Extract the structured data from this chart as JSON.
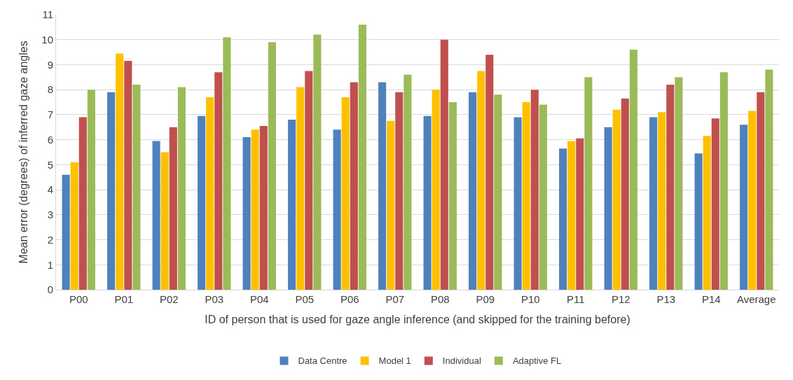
{
  "chart_data": {
    "type": "bar",
    "xlabel": "ID of person that is used for gaze angle inference (and skipped for the training before)",
    "ylabel": "Mean error (degrees) of inferred gaze angles",
    "categories": [
      "P00",
      "P01",
      "P02",
      "P03",
      "P04",
      "P05",
      "P06",
      "P07",
      "P08",
      "P09",
      "P10",
      "P11",
      "P12",
      "P13",
      "P14",
      "Average"
    ],
    "series": [
      {
        "name": "Data Centre",
        "color": "#4f81bd",
        "values": [
          4.6,
          7.9,
          5.95,
          6.95,
          6.1,
          6.8,
          6.4,
          8.3,
          6.95,
          7.9,
          6.9,
          5.65,
          6.5,
          6.9,
          5.45,
          6.6
        ]
      },
      {
        "name": "Model 1",
        "color": "#ffc000",
        "values": [
          5.1,
          9.45,
          5.5,
          7.7,
          6.4,
          8.1,
          7.7,
          6.75,
          8.0,
          8.75,
          7.5,
          5.95,
          7.2,
          7.1,
          6.15,
          7.15
        ]
      },
      {
        "name": "Individual",
        "color": "#c0504d",
        "values": [
          6.9,
          9.15,
          6.5,
          8.7,
          6.55,
          8.75,
          8.3,
          7.9,
          10.0,
          9.4,
          8.0,
          6.05,
          7.65,
          8.2,
          6.85,
          7.9
        ]
      },
      {
        "name": "Adaptive FL",
        "color": "#9bbb59",
        "values": [
          8.0,
          8.2,
          8.1,
          10.1,
          9.9,
          10.2,
          10.6,
          8.6,
          7.5,
          7.8,
          7.4,
          8.5,
          9.6,
          8.5,
          8.7,
          8.8
        ]
      }
    ],
    "ylim": [
      0,
      11
    ],
    "yticks": [
      0,
      1,
      2,
      3,
      4,
      5,
      6,
      7,
      8,
      9,
      10,
      11
    ],
    "grid": "y",
    "legend": "bottom"
  }
}
